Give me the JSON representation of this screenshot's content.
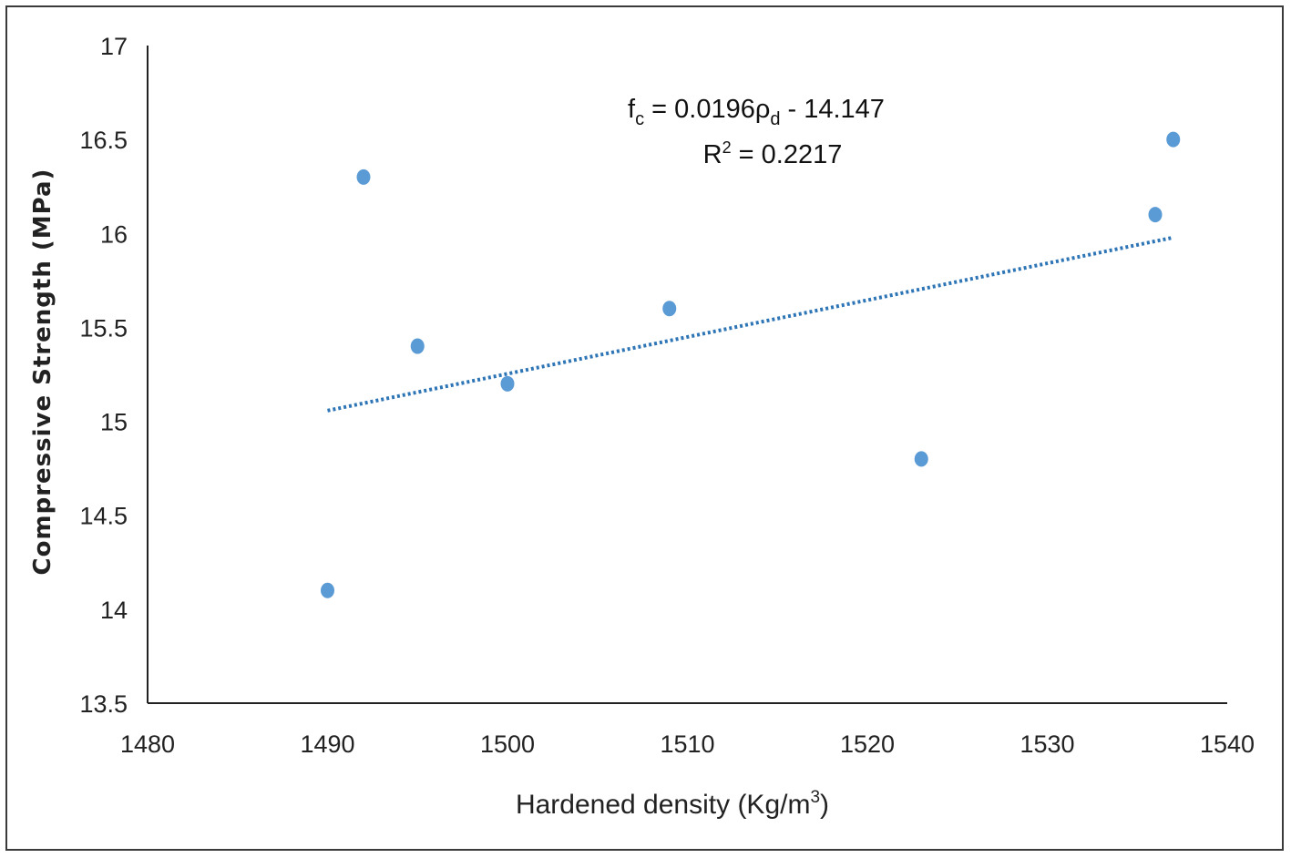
{
  "chart_data": {
    "type": "scatter",
    "title": "",
    "xlabel": "Hardened density (Kg/m³)",
    "xlabel_main": "Hardened density (Kg/m",
    "xlabel_sup": "3",
    "xlabel_close": ")",
    "ylabel": "Compressive Strength (MPa)",
    "xlim": [
      1480,
      1540
    ],
    "ylim": [
      13.5,
      17
    ],
    "xticks": [
      1480,
      1490,
      1500,
      1510,
      1520,
      1530,
      1540
    ],
    "yticks": [
      13.5,
      14,
      14.5,
      15,
      15.5,
      16,
      16.5,
      17
    ],
    "grid": false,
    "series": [
      {
        "color": "#5b9bd5",
        "points": [
          {
            "x": 1490,
            "y": 14.1
          },
          {
            "x": 1492,
            "y": 16.3
          },
          {
            "x": 1495,
            "y": 15.4
          },
          {
            "x": 1500,
            "y": 15.2
          },
          {
            "x": 1509,
            "y": 15.6
          },
          {
            "x": 1523,
            "y": 14.8
          },
          {
            "x": 1536,
            "y": 16.1
          },
          {
            "x": 1537,
            "y": 16.5
          }
        ]
      }
    ],
    "trendline": {
      "type": "linear",
      "slope": 0.0196,
      "intercept": -14.147,
      "x_range": [
        1490,
        1537
      ],
      "color": "#2e75b6",
      "style": "dotted"
    },
    "annotations": {
      "equation_prefix": "f",
      "equation_sub1": "c",
      "equation_mid": " = 0.0196ρ",
      "equation_sub2": "d",
      "equation_suffix": " - 14.147",
      "r2_prefix": "R",
      "r2_sup": "2",
      "r2_suffix": " = 0.2217"
    }
  }
}
